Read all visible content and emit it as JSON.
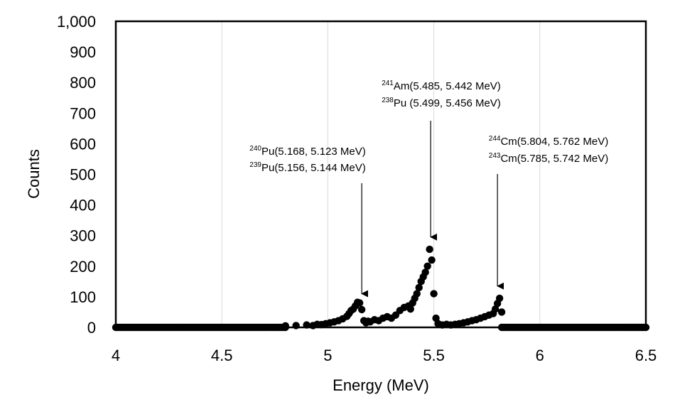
{
  "chart_data": {
    "type": "scatter",
    "xlabel": "Energy (MeV)",
    "ylabel": "Counts",
    "xlim": [
      4,
      6.5
    ],
    "ylim": [
      0,
      1000
    ],
    "x_ticks": [
      "4",
      "4.5",
      "5",
      "5.5",
      "6",
      "6.5"
    ],
    "y_ticks": [
      "0",
      "100",
      "200",
      "300",
      "400",
      "500",
      "600",
      "700",
      "800",
      "900",
      "1,000"
    ],
    "grid": "vertical",
    "marker_color": "#000000",
    "series": [
      {
        "x": [
          4.8,
          4.85,
          4.9,
          4.93,
          4.95,
          4.97,
          4.99,
          5.01,
          5.03,
          5.05,
          5.07,
          5.09,
          5.1,
          5.11,
          5.12,
          5.13,
          5.14,
          5.15,
          5.16,
          5.17,
          5.18,
          5.19,
          5.2,
          5.22,
          5.24,
          5.26,
          5.28,
          5.3,
          5.32,
          5.34,
          5.36,
          5.38,
          5.39,
          5.4,
          5.41,
          5.42,
          5.43,
          5.44,
          5.45,
          5.46,
          5.47,
          5.48,
          5.49,
          5.5,
          5.51,
          5.52,
          5.54,
          5.56,
          5.58,
          5.6,
          5.62,
          5.64,
          5.66,
          5.68,
          5.7,
          5.72,
          5.74,
          5.76,
          5.78,
          5.79,
          5.8,
          5.81,
          5.82
        ],
        "y": [
          5,
          6,
          8,
          6,
          10,
          9,
          12,
          15,
          18,
          22,
          28,
          36,
          45,
          55,
          60,
          70,
          82,
          80,
          58,
          22,
          15,
          20,
          18,
          25,
          22,
          30,
          35,
          30,
          40,
          55,
          65,
          70,
          60,
          80,
          95,
          110,
          130,
          150,
          165,
          180,
          200,
          255,
          220,
          110,
          30,
          12,
          8,
          10,
          8,
          10,
          12,
          15,
          18,
          22,
          25,
          30,
          35,
          40,
          45,
          60,
          78,
          95,
          50
        ]
      }
    ],
    "annotations": [
      {
        "lines": [
          {
            "isotope": "Pu",
            "mass": "240",
            "energies": "(5.168, 5.123 MeV)"
          },
          {
            "isotope": "Pu",
            "mass": "239",
            "energies": "(5.156, 5.144 MeV)"
          }
        ],
        "arrow_x": 5.16,
        "arrow_y": 110
      },
      {
        "lines": [
          {
            "isotope": "Am",
            "mass": "241",
            "energies": "(5.485, 5.442 MeV)"
          },
          {
            "isotope": "Pu ",
            "mass": "238",
            "energies": "(5.499, 5.456 MeV)"
          }
        ],
        "arrow_x": 5.485,
        "arrow_y": 295
      },
      {
        "lines": [
          {
            "isotope": "Cm",
            "mass": "244",
            "energies": "(5.804, 5.762 MeV)"
          },
          {
            "isotope": "Cm",
            "mass": "243",
            "energies": "(5.785, 5.742 MeV)"
          }
        ],
        "arrow_x": 5.8,
        "arrow_y": 135
      }
    ]
  }
}
